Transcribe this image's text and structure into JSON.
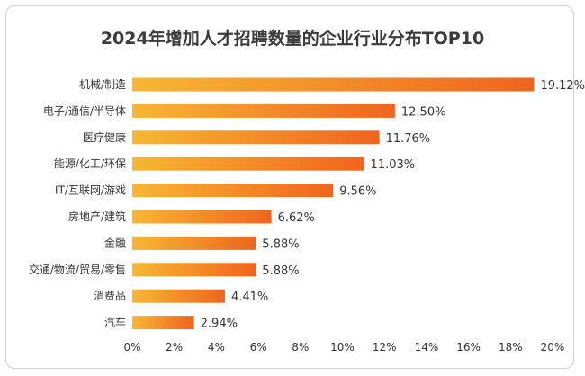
{
  "chart_data": {
    "type": "bar",
    "orientation": "horizontal",
    "title": "2024年增加人才招聘数量的企业行业分布TOP10",
    "categories": [
      "机械/制造",
      "电子/通信/半导体",
      "医疗健康",
      "能源/化工/环保",
      "IT/互联网/游戏",
      "房地产/建筑",
      "金融",
      "交通/物流/贸易/零售",
      "消费品",
      "汽车"
    ],
    "values": [
      19.12,
      12.5,
      11.76,
      11.03,
      9.56,
      6.62,
      5.88,
      5.88,
      4.41,
      2.94
    ],
    "value_labels": [
      "19.12%",
      "12.50%",
      "11.76%",
      "11.03%",
      "9.56%",
      "6.62%",
      "5.88%",
      "5.88%",
      "4.41%",
      "2.94%"
    ],
    "xlim": [
      0,
      20
    ],
    "xticks": [
      "0%",
      "2%",
      "4%",
      "6%",
      "8%",
      "10%",
      "12%",
      "14%",
      "16%",
      "18%",
      "20%"
    ],
    "xlabel": "",
    "ylabel": "",
    "grid": false,
    "colors": {
      "bar_start": "#f7b733",
      "bar_end": "#f0641e"
    }
  }
}
